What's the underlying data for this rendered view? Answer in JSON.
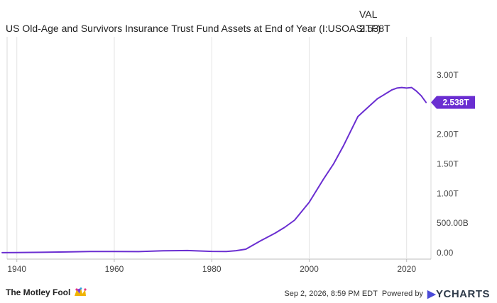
{
  "header": {
    "title": "US Old-Age and Survivors Insurance Trust Fund Assets at End of Year (I:USOASITF)",
    "val_label": "VAL",
    "val_value": "2.538T"
  },
  "footer": {
    "brand": "The Motley Fool",
    "timestamp": "Sep 2, 2026, 8:59 PM EDT",
    "powered_by": "Powered by",
    "provider": "YCHARTS"
  },
  "colors": {
    "line": "#6a2ed1",
    "grid": "#e4e4e4",
    "label_bg": "#6a2ed1"
  },
  "chart_data": {
    "type": "line",
    "title": "US Old-Age and Survivors Insurance Trust Fund Assets at End of Year (I:USOASITF)",
    "xlabel": "",
    "ylabel": "",
    "units": "USD",
    "xlim": [
      1938,
      2025
    ],
    "ylim": [
      0,
      3000000000000
    ],
    "x_ticks": [
      1940,
      1960,
      1980,
      2000,
      2020
    ],
    "x_tick_labels": [
      "1940",
      "1960",
      "1980",
      "2000",
      "2020"
    ],
    "y_ticks": [
      0,
      500000000000,
      1000000000000,
      1500000000000,
      2000000000000,
      2500000000000,
      3000000000000
    ],
    "y_tick_labels": [
      "0.00",
      "500.00B",
      "1.00T",
      "1.50T",
      "2.00T",
      "",
      "3.00T"
    ],
    "grid": "vertical",
    "last_value_label": "2.538T",
    "series": [
      {
        "x": [
          1937,
          1940,
          1945,
          1950,
          1955,
          1960,
          1965,
          1970,
          1975,
          1980,
          1983,
          1985,
          1987,
          1990,
          1993,
          1995,
          1997,
          2000,
          2003,
          2005,
          2007,
          2010,
          2012,
          2014,
          2015,
          2016,
          2017,
          2018,
          2019,
          2020,
          2021,
          2022,
          2023,
          2024
        ],
        "values": [
          800000000.0,
          2000000000.0,
          7000000000.0,
          13000000000.0,
          21000000000.0,
          20000000000.0,
          19000000000.0,
          32000000000.0,
          37000000000.0,
          23000000000.0,
          20000000000.0,
          35000000000.0,
          60000000000.0,
          200000000000.0,
          330000000000.0,
          430000000000.0,
          550000000000.0,
          850000000000.0,
          1250000000000.0,
          1500000000000.0,
          1800000000000.0,
          2300000000000.0,
          2450000000000.0,
          2600000000000.0,
          2650000000000.0,
          2700000000000.0,
          2750000000000.0,
          2780000000000.0,
          2790000000000.0,
          2780000000000.0,
          2790000000000.0,
          2730000000000.0,
          2650000000000.0,
          2538000000000.0
        ]
      }
    ]
  }
}
